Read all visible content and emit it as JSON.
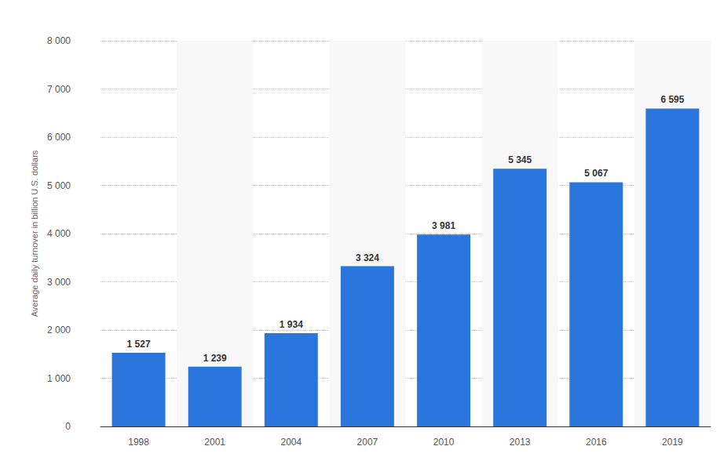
{
  "chart_data": {
    "type": "bar",
    "y_label": "Average daily turnover in billion U.S. dollars",
    "categories": [
      "1998",
      "2001",
      "2004",
      "2007",
      "2010",
      "2013",
      "2016",
      "2019"
    ],
    "values": [
      1527,
      1239,
      1934,
      3324,
      3981,
      5345,
      5067,
      6595
    ],
    "value_labels": [
      "1 527",
      "1 239",
      "1 934",
      "3 324",
      "3 981",
      "5 345",
      "5 067",
      "6 595"
    ],
    "color": "#2a76dd",
    "ylim": [
      0,
      8000
    ],
    "yticks": [
      0,
      {
        "value": 1000,
        "label": "1 000"
      },
      {
        "value": 2000,
        "label": "2 000"
      },
      {
        "value": 3000,
        "label": "3 000"
      },
      {
        "value": 4000,
        "label": "4 000"
      },
      {
        "value": 5000,
        "label": "5 000"
      },
      {
        "value": 6000,
        "label": "6 000"
      },
      {
        "value": 7000,
        "label": "7 000"
      },
      {
        "value": 8000,
        "label": "8 000"
      }
    ],
    "grid": true,
    "data_labels": true
  }
}
